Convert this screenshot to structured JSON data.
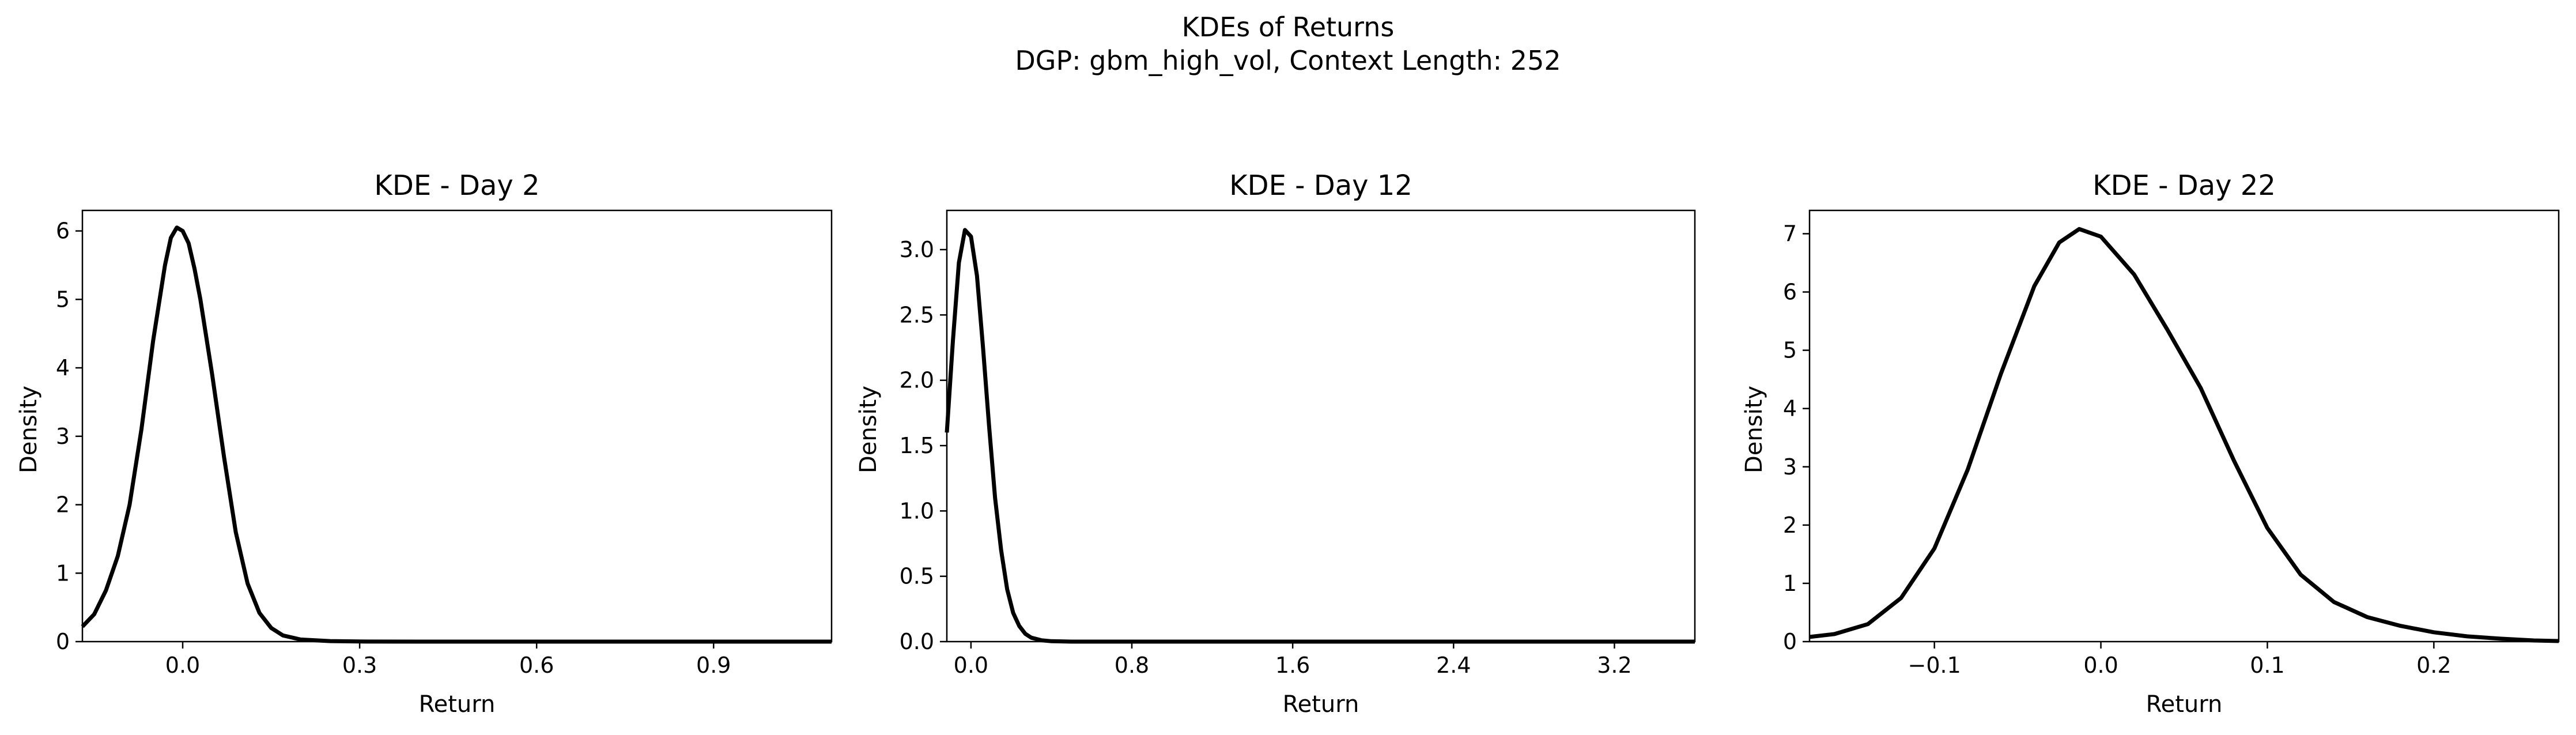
{
  "figure": {
    "suptitle_line1": "KDEs of Returns",
    "suptitle_line2": "DGP: gbm_high_vol, Context Length: 252"
  },
  "chart_data": [
    {
      "type": "line",
      "title": "KDE - Day 2",
      "xlabel": "Return",
      "ylabel": "Density",
      "xlim": [
        -0.17,
        1.1
      ],
      "ylim": [
        0,
        6.3
      ],
      "xticks": [
        0.0,
        0.3,
        0.6,
        0.9
      ],
      "xtick_labels": [
        "0.0",
        "0.3",
        "0.6",
        "0.9"
      ],
      "yticks": [
        0,
        1,
        2,
        3,
        4,
        5,
        6
      ],
      "ytick_labels": [
        "0",
        "1",
        "2",
        "3",
        "4",
        "5",
        "6"
      ],
      "grid": false,
      "line_color": "#000000",
      "x": [
        -0.17,
        -0.15,
        -0.13,
        -0.11,
        -0.09,
        -0.07,
        -0.05,
        -0.03,
        -0.02,
        -0.01,
        0.0,
        0.01,
        0.02,
        0.03,
        0.05,
        0.07,
        0.09,
        0.11,
        0.13,
        0.15,
        0.17,
        0.2,
        0.25,
        0.3,
        0.4,
        0.6,
        0.8,
        1.1
      ],
      "y": [
        0.22,
        0.4,
        0.75,
        1.25,
        2.0,
        3.1,
        4.4,
        5.5,
        5.9,
        6.05,
        6.0,
        5.82,
        5.45,
        5.0,
        3.9,
        2.7,
        1.6,
        0.85,
        0.42,
        0.2,
        0.09,
        0.03,
        0.008,
        0.002,
        0.0,
        0.0,
        0.0,
        0.0
      ]
    },
    {
      "type": "line",
      "title": "KDE - Day 12",
      "xlabel": "Return",
      "ylabel": "Density",
      "xlim": [
        -0.12,
        3.6
      ],
      "ylim": [
        0,
        3.3
      ],
      "xticks": [
        0.0,
        0.8,
        1.6,
        2.4,
        3.2
      ],
      "xtick_labels": [
        "0.0",
        "0.8",
        "1.6",
        "2.4",
        "3.2"
      ],
      "yticks": [
        0.0,
        0.5,
        1.0,
        1.5,
        2.0,
        2.5,
        3.0
      ],
      "ytick_labels": [
        "0.0",
        "0.5",
        "1.0",
        "1.5",
        "2.0",
        "2.5",
        "3.0"
      ],
      "grid": false,
      "line_color": "#000000",
      "x": [
        -0.12,
        -0.09,
        -0.06,
        -0.03,
        0.0,
        0.03,
        0.06,
        0.09,
        0.12,
        0.15,
        0.18,
        0.21,
        0.24,
        0.27,
        0.3,
        0.35,
        0.4,
        0.5,
        0.7,
        1.0,
        2.0,
        3.6
      ],
      "y": [
        1.6,
        2.3,
        2.9,
        3.15,
        3.1,
        2.8,
        2.25,
        1.65,
        1.1,
        0.7,
        0.4,
        0.22,
        0.12,
        0.06,
        0.03,
        0.01,
        0.003,
        0.0,
        0.0,
        0.0,
        0.0,
        0.0
      ]
    },
    {
      "type": "line",
      "title": "KDE - Day 22",
      "xlabel": "Return",
      "ylabel": "Density",
      "xlim": [
        -0.175,
        0.275
      ],
      "ylim": [
        0,
        7.4
      ],
      "xticks": [
        -0.1,
        0.0,
        0.1,
        0.2
      ],
      "xtick_labels": [
        "−0.1",
        "0.0",
        "0.1",
        "0.2"
      ],
      "yticks": [
        0,
        1,
        2,
        3,
        4,
        5,
        6,
        7
      ],
      "ytick_labels": [
        "0",
        "1",
        "2",
        "3",
        "4",
        "5",
        "6",
        "7"
      ],
      "grid": false,
      "line_color": "#000000",
      "x": [
        -0.175,
        -0.16,
        -0.14,
        -0.12,
        -0.1,
        -0.08,
        -0.06,
        -0.04,
        -0.025,
        -0.013,
        0.0,
        0.02,
        0.04,
        0.06,
        0.08,
        0.1,
        0.12,
        0.14,
        0.16,
        0.18,
        0.2,
        0.22,
        0.24,
        0.26,
        0.275
      ],
      "y": [
        0.08,
        0.13,
        0.3,
        0.75,
        1.6,
        2.95,
        4.6,
        6.1,
        6.85,
        7.08,
        6.95,
        6.3,
        5.35,
        4.35,
        3.1,
        1.95,
        1.15,
        0.68,
        0.42,
        0.27,
        0.16,
        0.09,
        0.05,
        0.02,
        0.01
      ]
    }
  ]
}
